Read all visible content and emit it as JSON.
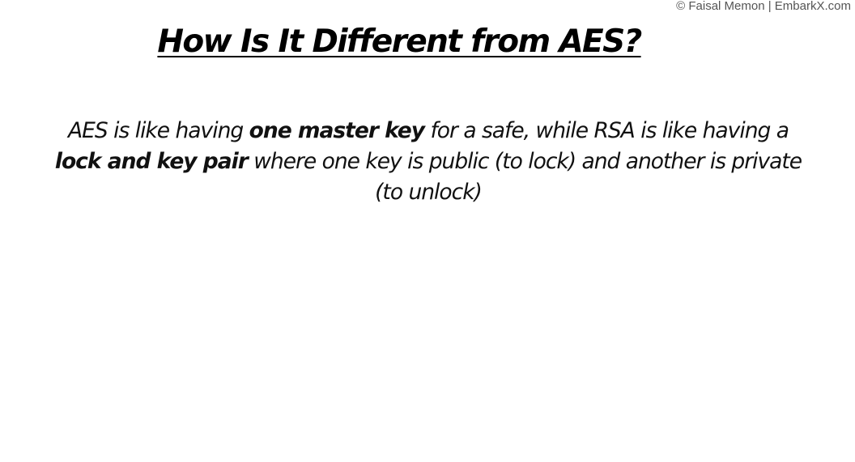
{
  "copyright": "© Faisal Memon | EmbarkX.com",
  "title": "How Is It Different from AES?",
  "body": {
    "part1": "AES is like having ",
    "bold1": "one master key",
    "part2": " for a safe, while RSA is like having a ",
    "bold2": "lock and key pair",
    "part3": " where one key is public (to lock) and another is private (to unlock)"
  }
}
